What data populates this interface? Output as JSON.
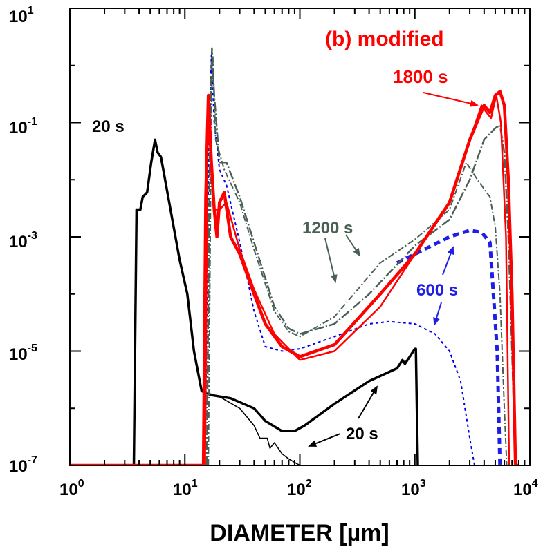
{
  "chart_data": {
    "type": "line",
    "title": "(b) modified",
    "xlabel": "DIAMETER [µm]",
    "ylabel": "",
    "xscale": "log",
    "yscale": "log",
    "xlim": [
      1,
      10000
    ],
    "ylim": [
      1e-07,
      10
    ],
    "grid": false,
    "x_ticks": [
      {
        "base": "10",
        "exp": "0"
      },
      {
        "base": "10",
        "exp": "1"
      },
      {
        "base": "10",
        "exp": "2"
      },
      {
        "base": "10",
        "exp": "3"
      },
      {
        "base": "10",
        "exp": "4"
      }
    ],
    "y_ticks": [
      {
        "base": "10",
        "exp": "-7"
      },
      {
        "base": "10",
        "exp": "-5"
      },
      {
        "base": "10",
        "exp": "-3"
      },
      {
        "base": "10",
        "exp": "-1"
      },
      {
        "base": "10",
        "exp": "1"
      }
    ],
    "series": [
      {
        "color": "#000000",
        "width": 3.5,
        "dash": "",
        "points": [
          [
            1,
            1e-07
          ],
          [
            3.6,
            1e-07
          ],
          [
            3.8,
            0.003
          ],
          [
            4.1,
            0.003
          ],
          [
            4.3,
            0.005
          ],
          [
            4.7,
            0.006
          ],
          [
            5.1,
            0.02
          ],
          [
            5.5,
            0.05
          ],
          [
            5.8,
            0.03
          ],
          [
            6.2,
            0.025
          ],
          [
            7.5,
            0.003
          ],
          [
            9,
            0.0004
          ],
          [
            10.5,
            0.0001
          ],
          [
            12,
            1e-05
          ],
          [
            14,
            2e-06
          ],
          [
            17,
            1.7e-06
          ],
          [
            25,
            1.5e-06
          ],
          [
            40,
            1e-06
          ],
          [
            50,
            6e-07
          ],
          [
            70,
            4e-07
          ],
          [
            90,
            4e-07
          ],
          [
            110,
            5e-07
          ],
          [
            200,
            1.2e-06
          ],
          [
            400,
            3e-06
          ],
          [
            700,
            5e-06
          ],
          [
            780,
            7e-06
          ],
          [
            820,
            6e-06
          ],
          [
            1000,
            1.1e-05
          ],
          [
            1020,
            1.1e-05
          ],
          [
            1060,
            1e-07
          ]
        ]
      },
      {
        "color": "#000000",
        "width": 1.6,
        "dash": "",
        "points": [
          [
            14,
            2e-06
          ],
          [
            20,
            1.6e-06
          ],
          [
            30,
            1e-06
          ],
          [
            40,
            5e-07
          ],
          [
            45,
            3e-07
          ],
          [
            52,
            3e-07
          ],
          [
            55,
            2e-07
          ],
          [
            60,
            2.5e-07
          ],
          [
            70,
            1.6e-07
          ],
          [
            80,
            1.3e-07
          ],
          [
            100,
            1e-07
          ]
        ]
      },
      {
        "color": "#0000ee",
        "width": 2,
        "dash": "4 4",
        "points": [
          [
            15,
            1e-07
          ],
          [
            16,
            0.01
          ],
          [
            17,
            1.5
          ],
          [
            18,
            0.1
          ],
          [
            20,
            0.015
          ],
          [
            23,
            0.008
          ],
          [
            30,
            0.0008
          ],
          [
            40,
            5e-05
          ],
          [
            50,
            1.2e-05
          ],
          [
            70,
            1e-05
          ],
          [
            100,
            1.1e-05
          ],
          [
            200,
            1.8e-05
          ],
          [
            400,
            3e-05
          ],
          [
            600,
            3.3e-05
          ],
          [
            1000,
            3e-05
          ],
          [
            1500,
            2e-05
          ],
          [
            2000,
            1e-05
          ],
          [
            2500,
            3e-06
          ],
          [
            3000,
            3e-07
          ],
          [
            3300,
            1e-07
          ]
        ]
      },
      {
        "color": "#1e1ee6",
        "width": 5,
        "dash": "9 6",
        "points": [
          [
            700,
            0.00035
          ],
          [
            1200,
            0.0006
          ],
          [
            2000,
            0.001
          ],
          [
            3000,
            0.0013
          ],
          [
            3800,
            0.0012
          ],
          [
            4500,
            0.0008
          ],
          [
            5200,
            1e-05
          ],
          [
            5500,
            1e-07
          ]
        ]
      },
      {
        "color": "#4a6054",
        "width": 2.5,
        "dash": "14 3 2 3",
        "points": [
          [
            15.5,
            1e-07
          ],
          [
            16.5,
            0.05
          ],
          [
            17.2,
            2
          ],
          [
            18,
            0.3
          ],
          [
            20,
            0.02
          ],
          [
            23,
            0.02
          ],
          [
            30,
            0.005
          ],
          [
            40,
            0.0008
          ],
          [
            60,
            6e-05
          ],
          [
            80,
            2.5e-05
          ],
          [
            100,
            2e-05
          ],
          [
            200,
            3e-05
          ],
          [
            400,
            0.0001
          ],
          [
            1000,
            0.0007
          ],
          [
            2000,
            0.002
          ],
          [
            3000,
            0.01
          ],
          [
            4000,
            0.05
          ],
          [
            5000,
            0.08
          ],
          [
            5500,
            0.09
          ],
          [
            6000,
            0.03
          ],
          [
            6500,
            0.001
          ],
          [
            7000,
            1e-05
          ],
          [
            7500,
            1e-07
          ]
        ]
      },
      {
        "color": "#4a6054",
        "width": 2,
        "dash": "9 3 2 3",
        "points": [
          [
            16,
            1e-07
          ],
          [
            17,
            0.2
          ],
          [
            17.5,
            1.5
          ],
          [
            18.5,
            0.05
          ],
          [
            22,
            0.015
          ],
          [
            30,
            0.004
          ],
          [
            40,
            0.0006
          ],
          [
            60,
            5e-05
          ],
          [
            80,
            2.2e-05
          ],
          [
            100,
            1.8e-05
          ],
          [
            200,
            4e-05
          ],
          [
            500,
            0.00035
          ],
          [
            1000,
            0.0009
          ],
          [
            2000,
            0.003
          ],
          [
            2800,
            0.02
          ],
          [
            3500,
            0.01
          ],
          [
            4500,
            0.005
          ],
          [
            5000,
            0.0015
          ],
          [
            5500,
            0.0001
          ],
          [
            6000,
            1e-06
          ],
          [
            6300,
            1e-07
          ]
        ]
      },
      {
        "color": "#ff0000",
        "width": 4.5,
        "dash": "",
        "points": [
          [
            1,
            1e-07
          ],
          [
            14.5,
            1e-07
          ],
          [
            15.2,
            0.005
          ],
          [
            16,
            0.3
          ],
          [
            17,
            0.02
          ],
          [
            18,
            0.003
          ],
          [
            19,
            0.001
          ],
          [
            20,
            0.004
          ],
          [
            22,
            0.006
          ],
          [
            25,
            0.001
          ],
          [
            30,
            0.0005
          ],
          [
            40,
            0.0001
          ],
          [
            50,
            3e-05
          ],
          [
            70,
            1.2e-05
          ],
          [
            100,
            8e-06
          ],
          [
            200,
            1.3e-05
          ],
          [
            500,
            0.0001
          ],
          [
            1000,
            0.0005
          ],
          [
            2000,
            0.004
          ],
          [
            3000,
            0.05
          ],
          [
            4000,
            0.2
          ],
          [
            4500,
            0.15
          ],
          [
            5000,
            0.3
          ],
          [
            5500,
            0.35
          ],
          [
            6000,
            0.2
          ],
          [
            6500,
            0.01
          ],
          [
            7000,
            0.0001
          ],
          [
            7500,
            1e-07
          ],
          [
            8000,
            1e-07
          ]
        ]
      },
      {
        "color": "#ff0000",
        "width": 2.5,
        "dash": "",
        "points": [
          [
            15,
            1e-07
          ],
          [
            15.8,
            0.1
          ],
          [
            17,
            0.02
          ],
          [
            18,
            0.003
          ],
          [
            20,
            0.003
          ],
          [
            23,
            0.004
          ],
          [
            30,
            0.0006
          ],
          [
            40,
            0.00012
          ],
          [
            60,
            2e-05
          ],
          [
            100,
            7e-06
          ],
          [
            200,
            1e-05
          ],
          [
            500,
            6e-05
          ],
          [
            1000,
            0.0005
          ],
          [
            2000,
            0.004
          ],
          [
            3000,
            0.05
          ],
          [
            3800,
            0.2
          ],
          [
            4200,
            0.15
          ],
          [
            4600,
            0.12
          ],
          [
            5100,
            0.3
          ],
          [
            5600,
            0.1
          ],
          [
            6200,
            0.001
          ],
          [
            6600,
            1e-07
          ]
        ]
      }
    ],
    "annotations": [
      {
        "text": "(b) modified",
        "color": "#ff0000",
        "size": 30
      },
      {
        "text": "1800 s",
        "color": "#ff0000",
        "size": 26
      },
      {
        "text": "20 s",
        "color": "#000000",
        "size": 24
      },
      {
        "text": "1200 s",
        "color": "#4a6054",
        "size": 24
      },
      {
        "text": "600 s",
        "color": "#1e1ee6",
        "size": 24
      },
      {
        "text": "20 s",
        "color": "#000000",
        "size": 24
      }
    ]
  }
}
